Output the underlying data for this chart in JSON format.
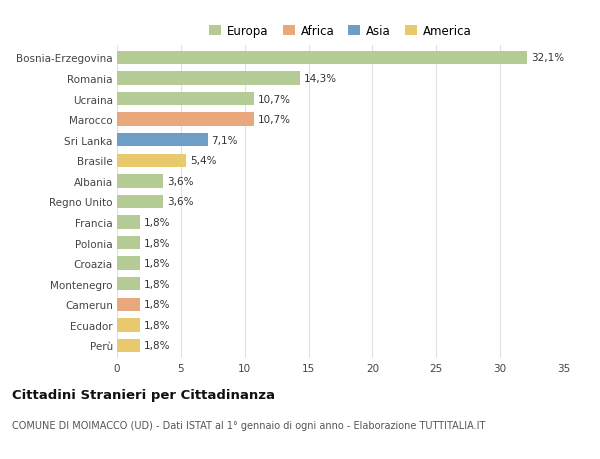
{
  "categories": [
    "Bosnia-Erzegovina",
    "Romania",
    "Ucraina",
    "Marocco",
    "Sri Lanka",
    "Brasile",
    "Albania",
    "Regno Unito",
    "Francia",
    "Polonia",
    "Croazia",
    "Montenegro",
    "Camerun",
    "Ecuador",
    "Perù"
  ],
  "values": [
    32.1,
    14.3,
    10.7,
    10.7,
    7.1,
    5.4,
    3.6,
    3.6,
    1.8,
    1.8,
    1.8,
    1.8,
    1.8,
    1.8,
    1.8
  ],
  "labels": [
    "32,1%",
    "14,3%",
    "10,7%",
    "10,7%",
    "7,1%",
    "5,4%",
    "3,6%",
    "3,6%",
    "1,8%",
    "1,8%",
    "1,8%",
    "1,8%",
    "1,8%",
    "1,8%",
    "1,8%"
  ],
  "colors": [
    "#b5cb96",
    "#b5cb96",
    "#b5cb96",
    "#e8a87c",
    "#6e9ec8",
    "#e8c96e",
    "#b5cb96",
    "#b5cb96",
    "#b5cb96",
    "#b5cb96",
    "#b5cb96",
    "#b5cb96",
    "#e8a87c",
    "#e8c96e",
    "#e8c96e"
  ],
  "continent_colors": {
    "Europa": "#b5cb96",
    "Africa": "#e8a87c",
    "Asia": "#6e9ec8",
    "America": "#e8c96e"
  },
  "xlim": [
    0,
    35
  ],
  "xticks": [
    0,
    5,
    10,
    15,
    20,
    25,
    30,
    35
  ],
  "title": "Cittadini Stranieri per Cittadinanza",
  "subtitle": "COMUNE DI MOIMACCO (UD) - Dati ISTAT al 1° gennaio di ogni anno - Elaborazione TUTTITALIA.IT",
  "background_color": "#ffffff",
  "grid_color": "#e0e0e0",
  "label_fontsize": 7.5,
  "tick_fontsize": 7.5,
  "bar_height": 0.65
}
